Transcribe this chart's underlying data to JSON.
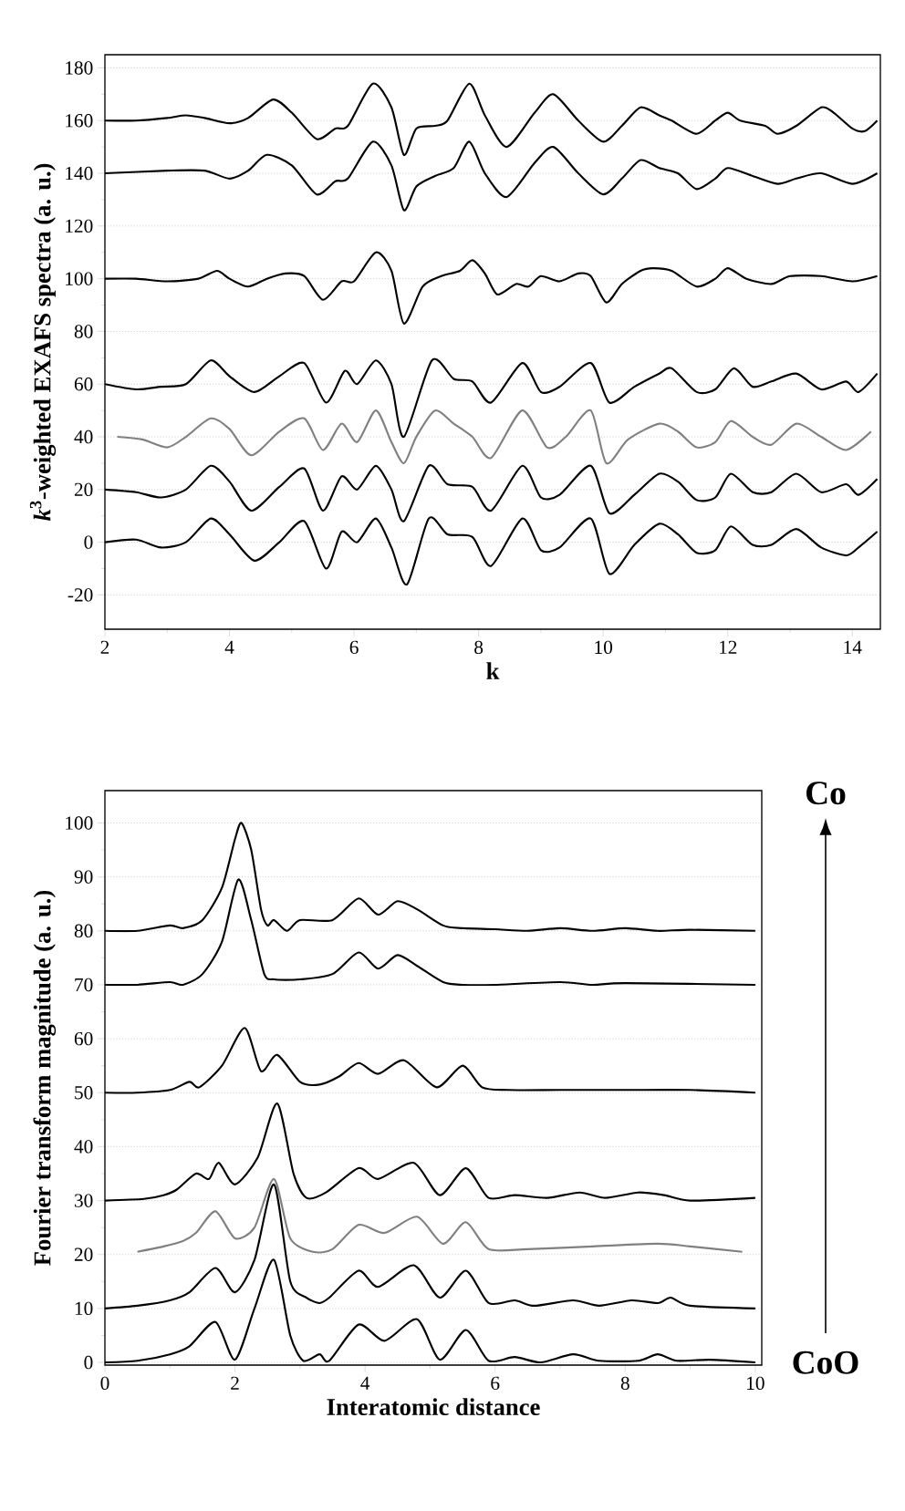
{
  "chart_data": [
    {
      "type": "line",
      "xlabel": "k",
      "ylabel": "*k*$^{3}$-weighted EXAFS spectra (a. u.)",
      "xlim": [
        2,
        14.45
      ],
      "ylim": [
        -33,
        185
      ],
      "xticks": [
        2,
        4,
        6,
        8,
        10,
        12,
        14
      ],
      "yticks": [
        -20,
        0,
        20,
        40,
        60,
        80,
        100,
        120,
        140,
        160,
        180
      ],
      "grid": "y",
      "series": [
        {
          "color": "#000000",
          "x": [
            2,
            2.5,
            3,
            3.3,
            3.6,
            4,
            4.3,
            4.7,
            5,
            5.4,
            5.7,
            5.9,
            6.3,
            6.6,
            6.8,
            7.0,
            7.3,
            7.5,
            7.85,
            8.1,
            8.45,
            8.9,
            9.2,
            9.6,
            10.0,
            10.3,
            10.6,
            10.9,
            11.1,
            11.5,
            11.8,
            12,
            12.2,
            12.6,
            12.8,
            13.1,
            13.5,
            13.7,
            14,
            14.2,
            14.4
          ],
          "values": [
            160,
            160,
            161,
            162,
            161,
            159,
            161,
            168,
            163,
            153,
            157,
            158,
            174,
            165,
            147,
            157,
            158,
            160,
            174,
            162,
            150,
            163,
            170,
            160,
            152,
            158,
            165,
            162,
            160,
            155,
            160,
            163,
            160,
            158,
            155,
            158,
            165,
            163,
            157,
            156,
            160
          ]
        },
        {
          "color": "#000000",
          "x": [
            2,
            3,
            3.6,
            4,
            4.3,
            4.6,
            5,
            5.4,
            5.7,
            5.9,
            6.3,
            6.6,
            6.8,
            7.0,
            7.3,
            7.6,
            7.85,
            8.1,
            8.45,
            8.9,
            9.2,
            9.6,
            10.0,
            10.3,
            10.6,
            10.9,
            11.2,
            11.5,
            11.8,
            12,
            12.4,
            12.8,
            13.1,
            13.5,
            14,
            14.4
          ],
          "values": [
            140,
            141,
            141,
            138,
            141,
            147,
            143,
            132,
            137,
            138,
            152,
            143,
            126,
            135,
            139,
            142,
            152,
            140,
            131,
            144,
            150,
            140,
            132,
            138,
            145,
            142,
            140,
            134,
            138,
            142,
            139,
            136,
            138,
            140,
            136,
            140
          ]
        },
        {
          "color": "#000000",
          "x": [
            2,
            2.5,
            3,
            3.5,
            3.8,
            4,
            4.3,
            4.6,
            4.9,
            5.2,
            5.5,
            5.8,
            6.0,
            6.35,
            6.6,
            6.8,
            7.1,
            7.4,
            7.7,
            7.9,
            8.1,
            8.3,
            8.6,
            8.8,
            9.0,
            9.3,
            9.6,
            9.8,
            10.05,
            10.3,
            10.6,
            10.8,
            11.1,
            11.5,
            11.8,
            12.0,
            12.3,
            12.7,
            13.0,
            13.5,
            14,
            14.4
          ],
          "values": [
            100,
            100,
            99,
            100,
            103,
            100,
            97,
            100,
            102,
            101,
            92,
            99,
            99,
            110,
            103,
            83,
            97,
            101,
            103,
            107,
            102,
            94,
            98,
            97,
            101,
            99,
            102,
            101,
            91,
            98,
            103,
            104,
            103,
            97,
            100,
            104,
            100,
            98,
            101,
            101,
            99,
            101
          ]
        },
        {
          "color": "#000000",
          "x": [
            2,
            2.5,
            2.9,
            3.3,
            3.7,
            4.0,
            4.4,
            4.8,
            5.2,
            5.55,
            5.85,
            6.05,
            6.35,
            6.6,
            6.8,
            7.25,
            7.6,
            7.9,
            8.2,
            8.7,
            9.0,
            9.3,
            9.8,
            10.1,
            10.5,
            10.9,
            11.1,
            11.5,
            11.8,
            12.1,
            12.4,
            12.7,
            13.1,
            13.5,
            13.9,
            14.1,
            14.4
          ],
          "values": [
            60,
            58,
            59,
            60,
            69,
            63,
            57,
            63,
            68,
            53,
            65,
            60,
            69,
            60,
            40,
            69,
            62,
            61,
            53,
            68,
            57,
            59,
            68,
            53,
            59,
            64,
            66,
            57,
            58,
            66,
            59,
            61,
            64,
            58,
            61,
            57,
            64
          ]
        },
        {
          "color": "#808080",
          "x": [
            2.2,
            2.6,
            3,
            3.3,
            3.7,
            4.0,
            4.35,
            4.8,
            5.2,
            5.5,
            5.8,
            6.05,
            6.35,
            6.6,
            6.8,
            7.0,
            7.3,
            7.6,
            7.9,
            8.2,
            8.7,
            9.1,
            9.4,
            9.8,
            10.05,
            10.4,
            10.9,
            11.2,
            11.5,
            11.8,
            12.05,
            12.4,
            12.7,
            13.1,
            13.5,
            13.9,
            14.3
          ],
          "values": [
            40,
            39,
            36,
            40,
            47,
            43,
            33,
            42,
            47,
            35,
            45,
            38,
            50,
            38,
            30,
            40,
            50,
            45,
            40,
            32,
            50,
            36,
            40,
            50,
            30,
            39,
            45,
            42,
            36,
            38,
            46,
            40,
            37,
            45,
            40,
            35,
            42
          ]
        },
        {
          "color": "#000000",
          "x": [
            2,
            2.5,
            2.9,
            3.3,
            3.7,
            4.0,
            4.35,
            4.8,
            5.2,
            5.5,
            5.8,
            6.05,
            6.35,
            6.6,
            6.8,
            7.2,
            7.5,
            7.9,
            8.2,
            8.7,
            9.0,
            9.3,
            9.8,
            10.1,
            10.5,
            10.9,
            11.2,
            11.5,
            11.8,
            12.05,
            12.4,
            12.7,
            13.1,
            13.5,
            13.9,
            14.1,
            14.4
          ],
          "values": [
            20,
            19,
            17,
            20,
            29,
            23,
            12,
            21,
            28,
            12,
            25,
            20,
            29,
            20,
            8,
            29,
            22,
            21,
            12,
            29,
            17,
            18,
            29,
            11,
            18,
            26,
            23,
            16,
            17,
            26,
            19,
            19,
            26,
            19,
            22,
            18,
            24
          ]
        },
        {
          "color": "#000000",
          "x": [
            2,
            2.5,
            2.9,
            3.3,
            3.7,
            4.0,
            4.4,
            4.8,
            5.2,
            5.55,
            5.8,
            6.05,
            6.35,
            6.6,
            6.85,
            7.2,
            7.5,
            7.9,
            8.2,
            8.7,
            9.0,
            9.3,
            9.8,
            10.1,
            10.5,
            10.9,
            11.2,
            11.5,
            11.8,
            12.05,
            12.4,
            12.7,
            13.1,
            13.5,
            13.9,
            14.1,
            14.4
          ],
          "values": [
            0,
            1,
            -2,
            0,
            9,
            3,
            -7,
            0,
            8,
            -10,
            4,
            0,
            9,
            -2,
            -16,
            9,
            3,
            2,
            -9,
            9,
            -3,
            -2,
            9,
            -12,
            -1,
            7,
            3,
            -4,
            -3,
            6,
            -1,
            -1,
            5,
            -2,
            -5,
            -2,
            4
          ]
        }
      ]
    },
    {
      "type": "line",
      "xlabel": "Interatomic distance",
      "ylabel": "Fourier transform magnitude (a. u.)",
      "xlim": [
        0,
        10.1
      ],
      "ylim": [
        -0.5,
        106
      ],
      "xticks": [
        0,
        2,
        4,
        6,
        8,
        10
      ],
      "yticks": [
        0,
        10,
        20,
        30,
        40,
        50,
        60,
        70,
        80,
        90,
        100
      ],
      "grid": "y",
      "annotations": [
        "Co",
        "CoO"
      ],
      "series": [
        {
          "color": "#000000",
          "x": [
            0,
            0.5,
            1,
            1.2,
            1.5,
            1.8,
            2.0,
            2.1,
            2.25,
            2.4,
            2.5,
            2.6,
            2.8,
            3.0,
            3.5,
            3.9,
            4.2,
            4.5,
            4.8,
            5.2,
            5.5,
            6,
            6.5,
            7,
            7.5,
            8,
            8.5,
            9,
            10
          ],
          "values": [
            80,
            80,
            81,
            80.5,
            82,
            88,
            97,
            100,
            95,
            84,
            81,
            82,
            80,
            82,
            82,
            86,
            83,
            85.5,
            84,
            81,
            80.5,
            80.3,
            80,
            80.5,
            80,
            80.5,
            80,
            80.2,
            80
          ]
        },
        {
          "color": "#000000",
          "x": [
            0,
            0.5,
            1,
            1.2,
            1.5,
            1.8,
            2.05,
            2.25,
            2.45,
            2.6,
            3,
            3.5,
            3.9,
            4.2,
            4.5,
            4.8,
            5.2,
            5.5,
            6,
            7,
            7.5,
            8,
            10
          ],
          "values": [
            70,
            70,
            70.5,
            70,
            72,
            78,
            89.5,
            82,
            72,
            71,
            71,
            72,
            76,
            73,
            75.5,
            73.5,
            70.5,
            70,
            70,
            70.5,
            70,
            70.3,
            70
          ]
        },
        {
          "color": "#000000",
          "x": [
            0,
            0.5,
            1,
            1.3,
            1.45,
            1.8,
            2.15,
            2.4,
            2.65,
            3,
            3.3,
            3.6,
            3.9,
            4.2,
            4.6,
            5.1,
            5.5,
            5.8,
            6.2,
            7,
            8,
            9,
            10
          ],
          "values": [
            50,
            50,
            50.5,
            52,
            51,
            55,
            62,
            54,
            57,
            52,
            51.5,
            53,
            55.5,
            53.5,
            56,
            51,
            55,
            51,
            50.5,
            50.5,
            50.5,
            50.5,
            50
          ]
        },
        {
          "color": "#000000",
          "x": [
            0,
            0.6,
            0.9,
            1.1,
            1.4,
            1.6,
            1.75,
            2.0,
            2.35,
            2.65,
            2.9,
            3.1,
            3.4,
            3.9,
            4.2,
            4.75,
            5.15,
            5.55,
            5.9,
            6.3,
            6.8,
            7.3,
            7.7,
            8.2,
            8.6,
            9,
            10
          ],
          "values": [
            30,
            30.3,
            31,
            32,
            35,
            34,
            37,
            33,
            38,
            48,
            35,
            30.5,
            31.5,
            36,
            34,
            37,
            31,
            36,
            30.5,
            31,
            30.5,
            31.5,
            30.5,
            31.5,
            31,
            30,
            30.5
          ]
        },
        {
          "color": "#808080",
          "x": [
            0.5,
            0.9,
            1.2,
            1.4,
            1.7,
            2.0,
            2.3,
            2.6,
            2.85,
            3.2,
            3.5,
            3.9,
            4.3,
            4.8,
            5.2,
            5.55,
            5.9,
            6.5,
            7.5,
            8.5,
            9,
            9.8
          ],
          "values": [
            20.5,
            21.5,
            22.5,
            24,
            28,
            23,
            25,
            34,
            23,
            20.5,
            21,
            25.5,
            24,
            27,
            22,
            26,
            21,
            21,
            21.5,
            22,
            21.5,
            20.5
          ]
        },
        {
          "color": "#000000",
          "x": [
            0,
            0.5,
            1,
            1.3,
            1.7,
            2.0,
            2.3,
            2.6,
            2.85,
            3.1,
            3.3,
            3.45,
            3.9,
            4.2,
            4.75,
            5.15,
            5.55,
            5.9,
            6.3,
            6.6,
            7.2,
            7.6,
            8.1,
            8.5,
            8.7,
            9,
            10
          ],
          "values": [
            10,
            10.5,
            11.5,
            13,
            17.5,
            13,
            19,
            33,
            15,
            12,
            11,
            12,
            17,
            14,
            18,
            12,
            17,
            11,
            11.5,
            10.5,
            11.5,
            10.5,
            11.5,
            11,
            12,
            10.5,
            10
          ]
        },
        {
          "color": "#000000",
          "x": [
            0,
            0.5,
            1,
            1.3,
            1.7,
            2.0,
            2.3,
            2.6,
            2.85,
            3.05,
            3.3,
            3.45,
            3.9,
            4.3,
            4.8,
            5.15,
            5.55,
            5.9,
            6.3,
            6.7,
            7.2,
            7.6,
            8.2,
            8.5,
            8.8,
            9.3,
            10
          ],
          "values": [
            0,
            0.3,
            1.5,
            3,
            7.5,
            0.5,
            10,
            19,
            5,
            0.3,
            1.5,
            0.3,
            7,
            4,
            8,
            0.5,
            6,
            0.3,
            1,
            0,
            1.5,
            0.3,
            0.3,
            1.5,
            0.3,
            0.5,
            0
          ]
        }
      ]
    }
  ]
}
